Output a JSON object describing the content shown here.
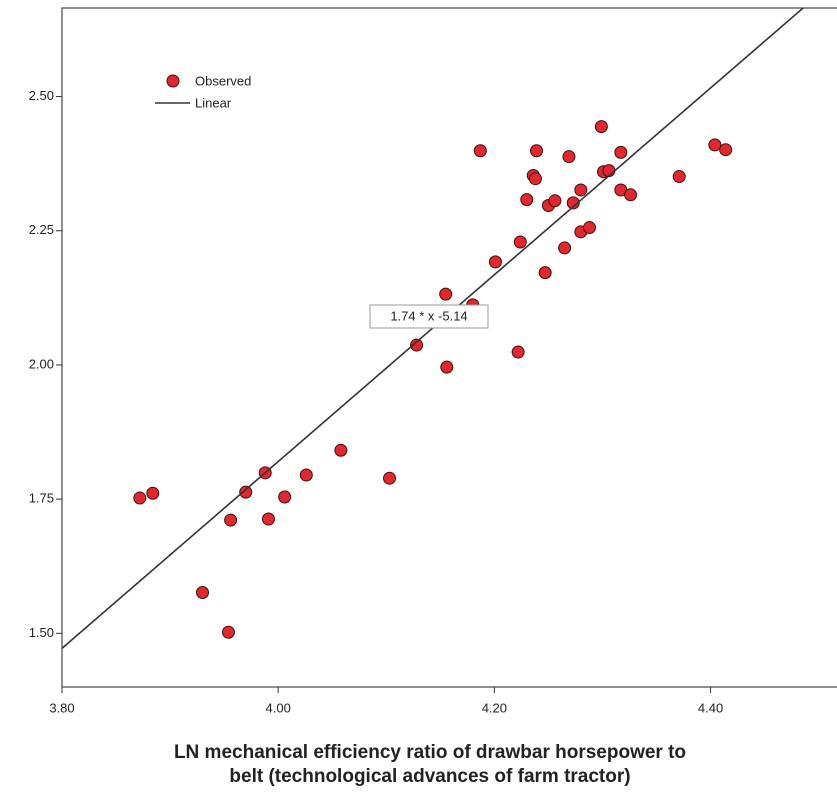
{
  "chart_data": {
    "type": "scatter",
    "x_label": [
      "LN mechanical efficiency ratio of drawbar horsepower to",
      "belt (technological advances of farm tractor)"
    ],
    "xlim": [
      3.8,
      4.517
    ],
    "ylim": [
      1.4,
      2.665
    ],
    "xticks": [
      {
        "value": 3.8,
        "label": "3.80"
      },
      {
        "value": 4.0,
        "label": "4.00"
      },
      {
        "value": 4.2,
        "label": "4.20"
      },
      {
        "value": 4.4,
        "label": "4.40"
      }
    ],
    "yticks": [
      {
        "value": 1.5,
        "label": "1.50"
      },
      {
        "value": 1.75,
        "label": "1.75"
      },
      {
        "value": 2.0,
        "label": "2.00"
      },
      {
        "value": 2.25,
        "label": "2.25"
      },
      {
        "value": 2.5,
        "label": "2.50"
      }
    ],
    "series": [
      {
        "name": "Observed",
        "color": "#e3272d",
        "x": [
          3.872,
          3.884,
          3.93,
          3.954,
          3.956,
          3.97,
          3.988,
          3.991,
          4.006,
          4.026,
          4.058,
          4.103,
          4.128,
          4.156,
          4.155,
          4.18,
          4.187,
          4.201,
          4.222,
          4.224,
          4.23,
          4.236,
          4.239,
          4.238,
          4.247,
          4.25,
          4.256,
          4.265,
          4.269,
          4.273,
          4.28,
          4.28,
          4.288,
          4.299,
          4.301,
          4.306,
          4.317,
          4.317,
          4.326,
          4.371,
          4.404,
          4.414
        ],
        "values": [
          1.752,
          1.761,
          1.576,
          1.502,
          1.711,
          1.763,
          1.799,
          1.713,
          1.754,
          1.795,
          1.841,
          1.789,
          2.037,
          1.996,
          2.132,
          2.112,
          2.399,
          2.192,
          2.024,
          2.229,
          2.308,
          2.353,
          2.399,
          2.347,
          2.172,
          2.297,
          2.306,
          2.218,
          2.388,
          2.302,
          2.326,
          2.248,
          2.256,
          2.444,
          2.36,
          2.362,
          2.396,
          2.326,
          2.317,
          2.351,
          2.41,
          2.401
        ]
      },
      {
        "name": "Linear",
        "color": "#333333",
        "slope": 1.74,
        "intercept": -5.14,
        "label": "1.74 * x -5.14"
      }
    ]
  }
}
